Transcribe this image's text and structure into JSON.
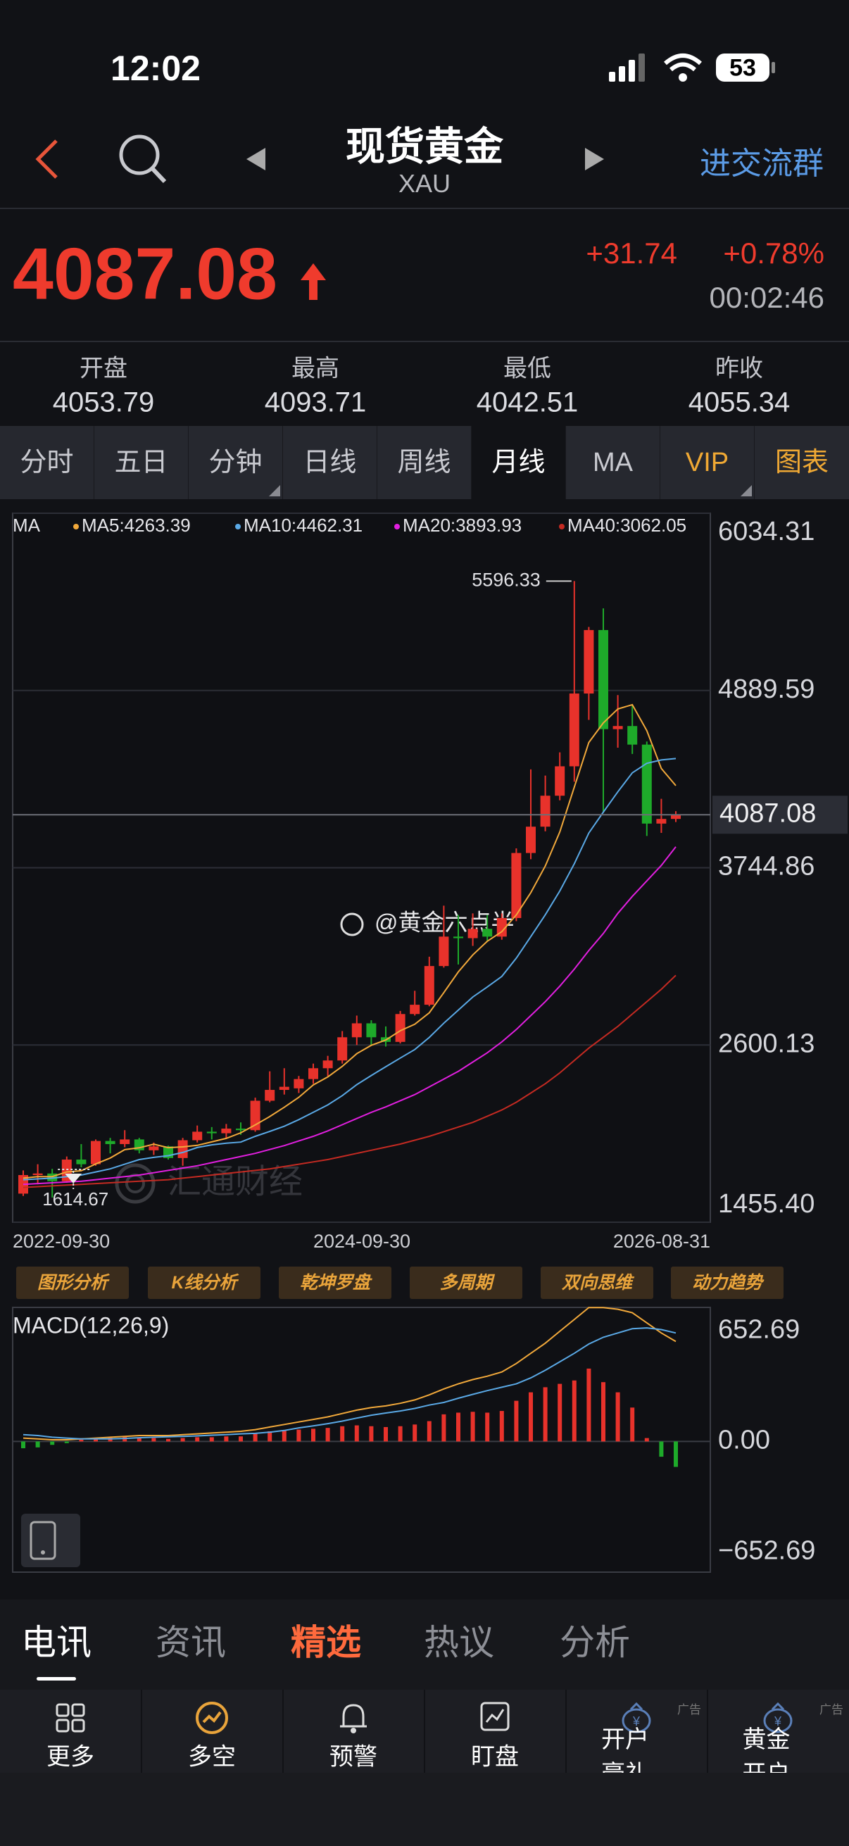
{
  "status_bar": {
    "time": "12:02",
    "battery": "53"
  },
  "header": {
    "title": "现货黄金",
    "subtitle": "XAU",
    "action": "进交流群"
  },
  "quote": {
    "price": "4087.08",
    "change": "+31.74",
    "change_percent": "+0.78%",
    "time": "00:02:46"
  },
  "stats": [
    {
      "label": "开盘",
      "value": "4053.79"
    },
    {
      "label": "最高",
      "value": "4093.71"
    },
    {
      "label": "最低",
      "value": "4042.51"
    },
    {
      "label": "昨收",
      "value": "4055.34"
    }
  ],
  "tabs": {
    "items": [
      "分时",
      "五日",
      "分钟",
      "日线",
      "周线",
      "月线",
      "MA",
      "VIP",
      "图表"
    ],
    "active": 5
  },
  "chart_data": [
    {
      "type": "candlestick",
      "legend_title": "MA",
      "ylim": [
        1455.4,
        6034.31
      ],
      "yticks": [
        {
          "value": 1455.4,
          "label": "1455.40"
        },
        2600.13,
        3744.86,
        4889.59,
        6034.31
      ],
      "grid": true,
      "x_labels": [
        "2022-09-30",
        "2024-09-30",
        "2026-08-31"
      ],
      "up_color": "#e8322b",
      "down_color": "#1eaa2a",
      "candles": {
        "open": [
          1640,
          1760,
          1770,
          1720,
          1860,
          1830,
          1980,
          1960,
          1990,
          1920,
          1945,
          1870,
          1985,
          2040,
          2030,
          2060,
          2050,
          2240,
          2310,
          2320,
          2380,
          2450,
          2500,
          2650,
          2740,
          2650,
          2620,
          2800,
          2860,
          3110,
          3300,
          3290,
          3350,
          3300,
          3420,
          3840,
          4010,
          4210,
          4400,
          4870,
          5280,
          4640,
          4660,
          4540,
          4030,
          4060
        ],
        "high": [
          1790,
          1830,
          1800,
          1880,
          1960,
          1990,
          2000,
          2050,
          2000,
          1970,
          1950,
          2000,
          2080,
          2070,
          2090,
          2100,
          2260,
          2430,
          2450,
          2400,
          2480,
          2530,
          2690,
          2790,
          2760,
          2720,
          2820,
          2950,
          3170,
          3500,
          3440,
          3450,
          3440,
          3450,
          3870,
          4380,
          4340,
          4490,
          5596.33,
          5300,
          5420,
          4860,
          4790,
          4560,
          4190,
          4110
        ],
        "low": [
          1625,
          1700,
          1614.67,
          1710,
          1810,
          1820,
          1900,
          1940,
          1900,
          1890,
          1860,
          1820,
          1970,
          1990,
          2000,
          2020,
          2040,
          2230,
          2280,
          2290,
          2350,
          2400,
          2480,
          2600,
          2600,
          2590,
          2610,
          2790,
          2850,
          3100,
          3120,
          3240,
          3270,
          3280,
          3400,
          3800,
          3980,
          4180,
          4300,
          4700,
          4100,
          4520,
          4480,
          3950,
          3970,
          4040
        ],
        "close": [
          1760,
          1770,
          1720,
          1860,
          1830,
          1980,
          1960,
          1990,
          1920,
          1945,
          1870,
          1985,
          2040,
          2030,
          2060,
          2050,
          2240,
          2310,
          2330,
          2380,
          2450,
          2500,
          2650,
          2740,
          2650,
          2620,
          2800,
          2860,
          3110,
          3300,
          3290,
          3350,
          3300,
          3420,
          3840,
          4010,
          4210,
          4400,
          4870,
          5280,
          4640,
          4660,
          4540,
          4030,
          4060,
          4087.08
        ]
      },
      "series": [
        {
          "name": "MA5:4263.39",
          "color": "#f2a93b",
          "values": [
            1740,
            1750,
            1750,
            1780,
            1788,
            1832,
            1870,
            1924,
            1936,
            1959,
            1937,
            1942,
            1952,
            1974,
            1997,
            2033,
            2084,
            2138,
            2198,
            2262,
            2342,
            2394,
            2462,
            2544,
            2598,
            2632,
            2692,
            2734,
            2808,
            2938,
            3072,
            3182,
            3270,
            3332,
            3440,
            3584,
            3756,
            3976,
            4266,
            4554,
            4680,
            4770,
            4798,
            4630,
            4386,
            4275
          ]
        },
        {
          "name": "MA10:4462.31",
          "color": "#5aa9e6",
          "values": [
            1730,
            1735,
            1740,
            1750,
            1760,
            1780,
            1800,
            1830,
            1860,
            1874,
            1885,
            1906,
            1938,
            1955,
            1966,
            1973,
            2010,
            2042,
            2075,
            2118,
            2165,
            2213,
            2273,
            2344,
            2403,
            2460,
            2516,
            2571,
            2649,
            2741,
            2825,
            2910,
            2975,
            3043,
            3161,
            3300,
            3441,
            3595,
            3771,
            3969,
            4104,
            4235,
            4358,
            4419,
            4441,
            4450
          ]
        },
        {
          "name": "MA20:3893.93",
          "color": "#e21fe0",
          "values": [
            1700,
            1705,
            1710,
            1715,
            1720,
            1730,
            1740,
            1750,
            1760,
            1775,
            1790,
            1805,
            1820,
            1840,
            1860,
            1880,
            1900,
            1925,
            1950,
            1980,
            2010,
            2045,
            2085,
            2125,
            2165,
            2200,
            2240,
            2280,
            2330,
            2380,
            2430,
            2490,
            2550,
            2620,
            2700,
            2790,
            2880,
            2980,
            3090,
            3210,
            3320,
            3450,
            3560,
            3660,
            3760,
            3880
          ]
        },
        {
          "name": "MA40:3062.05",
          "color": "#c42a22",
          "values": [
            1680,
            1685,
            1690,
            1695,
            1700,
            1705,
            1710,
            1715,
            1720,
            1725,
            1730,
            1740,
            1750,
            1760,
            1770,
            1780,
            1790,
            1800,
            1815,
            1830,
            1845,
            1860,
            1880,
            1900,
            1920,
            1940,
            1960,
            1985,
            2010,
            2040,
            2070,
            2100,
            2140,
            2180,
            2230,
            2290,
            2350,
            2420,
            2500,
            2580,
            2650,
            2720,
            2800,
            2880,
            2960,
            3050
          ]
        }
      ]
    },
    {
      "type": "macd",
      "title": "MACD(12,26,9)",
      "ylim": [
        -771,
        791
      ],
      "yticks": [
        {
          "value": -652.69,
          "label": "−652.69"
        },
        {
          "value": 0,
          "label": "0.00"
        },
        652.69
      ],
      "up_color": "#e8322b",
      "down_color": "#1eaa2a",
      "histogram": [
        -40,
        -35,
        -20,
        -10,
        10,
        20,
        25,
        30,
        25,
        20,
        15,
        20,
        25,
        25,
        30,
        30,
        45,
        60,
        65,
        70,
        75,
        80,
        90,
        95,
        90,
        85,
        90,
        100,
        120,
        160,
        170,
        175,
        170,
        180,
        240,
        290,
        320,
        340,
        360,
        430,
        350,
        290,
        200,
        20,
        -90,
        -150
      ],
      "series": [
        {
          "color": "#f2a93b",
          "values": [
            20,
            15,
            10,
            10,
            15,
            20,
            25,
            30,
            35,
            35,
            35,
            40,
            45,
            50,
            55,
            60,
            70,
            85,
            100,
            115,
            130,
            145,
            165,
            185,
            200,
            210,
            225,
            245,
            275,
            310,
            340,
            365,
            385,
            410,
            460,
            520,
            580,
            650,
            720,
            790,
            790,
            780,
            760,
            700,
            640,
            590
          ]
        },
        {
          "color": "#5aa9e6",
          "values": [
            40,
            35,
            25,
            20,
            15,
            15,
            15,
            18,
            22,
            25,
            28,
            30,
            33,
            37,
            40,
            45,
            48,
            55,
            65,
            80,
            92,
            105,
            120,
            138,
            155,
            168,
            180,
            195,
            215,
            230,
            255,
            278,
            300,
            320,
            340,
            375,
            420,
            470,
            520,
            575,
            615,
            640,
            665,
            670,
            660,
            640
          ]
        }
      ]
    }
  ],
  "watermarks": {
    "weibo": "@黄金六点半",
    "brand": "汇通财经"
  },
  "tools": [
    "图形分析",
    "K线分析",
    "乾坤罗盘",
    "多周期",
    "双向思维",
    "动力趋势"
  ],
  "news_tabs": {
    "items": [
      "电讯",
      "资讯",
      "精选",
      "热议",
      "分析"
    ],
    "active": 0,
    "highlight": 2
  },
  "toolbar": [
    {
      "label": "更多"
    },
    {
      "label": "多空"
    },
    {
      "label": "预警"
    },
    {
      "label": "盯盘"
    },
    {
      "label": "开户豪礼",
      "tag": "广告"
    },
    {
      "label": "黄金开户",
      "tag": "广告"
    }
  ]
}
